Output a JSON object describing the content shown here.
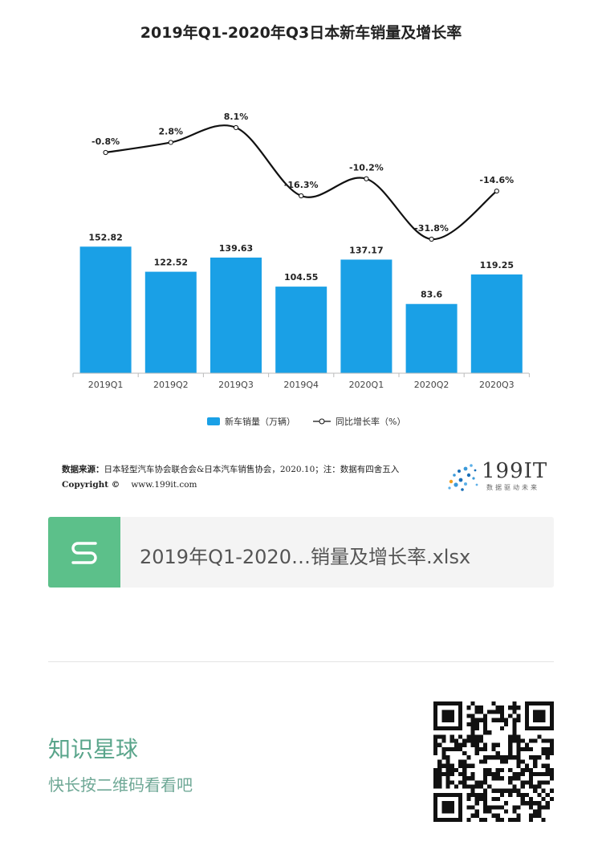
{
  "chart_data": {
    "type": "bar+line",
    "title": "2019年Q1-2020年Q3日本新车销量及增长率",
    "categories": [
      "2019Q1",
      "2019Q2",
      "2019Q3",
      "2019Q4",
      "2020Q1",
      "2020Q2",
      "2020Q3"
    ],
    "series": [
      {
        "name": "新车销量（万辆）",
        "type": "bar",
        "values": [
          152.82,
          122.52,
          139.63,
          104.55,
          137.17,
          83.6,
          119.25
        ],
        "labels": [
          "152.82",
          "122.52",
          "139.63",
          "104.55",
          "137.17",
          "83.6",
          "119.25"
        ],
        "color": "#1aa0e6"
      },
      {
        "name": "同比增长率（%）",
        "type": "line",
        "values": [
          -0.8,
          2.8,
          8.1,
          -16.3,
          -10.2,
          -31.8,
          -14.6
        ],
        "labels": [
          "-0.8%",
          "2.8%",
          "8.1%",
          "-16.3%",
          "-10.2%",
          "-31.8%",
          "-14.6%"
        ],
        "color": "#111111"
      }
    ],
    "legend_position": "bottom",
    "grid": false
  },
  "source": {
    "label": "数据来源：",
    "text": "日本轻型汽车协会联合会&日本汽车销售协会，2020.10；注：数据有四舍五入"
  },
  "copyright": {
    "label": "Copyright ©",
    "url": "www.199it.com"
  },
  "logo": {
    "brand": "199IT",
    "slogan": "数据驱动未来"
  },
  "file": {
    "name": "2019年Q1-2020…销量及增长率.xlsx",
    "icon_color": "#5cc08a"
  },
  "planet": {
    "title": "知识星球",
    "subtitle": "快长按二维码看看吧"
  },
  "qr_icon": "qr-code-icon"
}
